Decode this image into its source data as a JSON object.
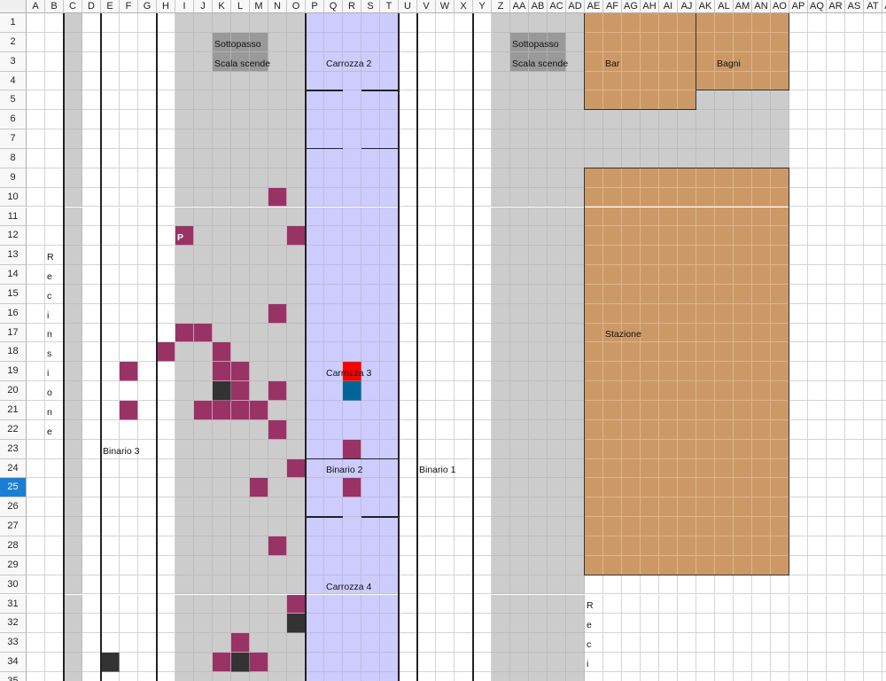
{
  "columns": [
    "A",
    "B",
    "C",
    "D",
    "E",
    "F",
    "G",
    "H",
    "I",
    "J",
    "K",
    "L",
    "M",
    "N",
    "O",
    "P",
    "Q",
    "R",
    "S",
    "T",
    "U",
    "V",
    "W",
    "X",
    "Y",
    "Z",
    "AA",
    "AB",
    "AC",
    "AD",
    "AE",
    "AF",
    "AG",
    "AH",
    "AI",
    "AJ",
    "AK",
    "AL",
    "AM",
    "AN",
    "AO",
    "AP",
    "AQ",
    "AR",
    "AS",
    "AT",
    "AU"
  ],
  "rows": [
    "1",
    "2",
    "3",
    "4",
    "5",
    "6",
    "7",
    "8",
    "9",
    "10",
    "11",
    "12",
    "13",
    "14",
    "15",
    "16",
    "17",
    "18",
    "19",
    "20",
    "21",
    "22",
    "23",
    "24",
    "25",
    "26",
    "27",
    "28",
    "29",
    "30",
    "31",
    "32",
    "33",
    "34",
    "35"
  ],
  "selected_row": "25",
  "colors": {
    "gray": "#cccccc",
    "dark_gray": "#999999",
    "lavender": "#ccccff",
    "orange": "#cc9966",
    "magenta": "#993366",
    "dark": "#333333",
    "red": "#ff0000",
    "blue": "#006699"
  },
  "fills": [
    {
      "range": "C1:C35",
      "color": "gray"
    },
    {
      "range": "I1:O35",
      "color": "gray"
    },
    {
      "range": "P1:T35",
      "color": "lavender"
    },
    {
      "range": "Z1:AD35",
      "color": "gray"
    },
    {
      "range": "AE1:AJ5",
      "color": "orange"
    },
    {
      "range": "AK1:AO4",
      "color": "orange"
    },
    {
      "range": "AK5:AO8",
      "color": "gray"
    },
    {
      "range": "AE6:AJ8",
      "color": "gray"
    },
    {
      "range": "AE9:AO29",
      "color": "orange"
    },
    {
      "range": "K2:M3",
      "color": "dark_gray"
    },
    {
      "range": "AA2:AC3",
      "color": "dark_gray"
    },
    {
      "range": "R19:R19",
      "color": "red"
    },
    {
      "range": "R20:R20",
      "color": "blue"
    }
  ],
  "magenta_cells": [
    "N10",
    "I12",
    "O12",
    "N16",
    "I17",
    "J17",
    "H18",
    "K18",
    "F19",
    "K19",
    "L19",
    "L20",
    "N20",
    "F21",
    "J21",
    "K21",
    "L21",
    "M21",
    "N22",
    "R23",
    "O24",
    "M25",
    "R25",
    "N28",
    "O31",
    "L33",
    "K34",
    "M34"
  ],
  "dark_cells": [
    "K20",
    "O32",
    "E34",
    "L34"
  ],
  "labels": [
    {
      "cell": "K2",
      "text": "Sottopasso"
    },
    {
      "cell": "K3",
      "text": "Scala scende"
    },
    {
      "cell": "AA2",
      "text": "Sottopasso"
    },
    {
      "cell": "AA3",
      "text": "Scala scende"
    },
    {
      "cell": "Q3",
      "text": "Carrozza 2"
    },
    {
      "cell": "AF3",
      "text": "Bar"
    },
    {
      "cell": "AL3",
      "text": "Bagni"
    },
    {
      "cell": "I12",
      "text": "P",
      "style": "white"
    },
    {
      "cell": "AF17",
      "text": "Stazione"
    },
    {
      "cell": "Q19",
      "text": "Carrozza 3"
    },
    {
      "cell": "E23",
      "text": "Binario 3"
    },
    {
      "cell": "Q24",
      "text": "Binario 2"
    },
    {
      "cell": "V24",
      "text": "Binario 1"
    },
    {
      "cell": "Q30",
      "text": "Carrozza 4"
    },
    {
      "cell": "B13",
      "text": "R"
    },
    {
      "cell": "B14",
      "text": "e"
    },
    {
      "cell": "B15",
      "text": "c"
    },
    {
      "cell": "B16",
      "text": "i"
    },
    {
      "cell": "B17",
      "text": "n"
    },
    {
      "cell": "B18",
      "text": "s"
    },
    {
      "cell": "B19",
      "text": "i"
    },
    {
      "cell": "B20",
      "text": "o"
    },
    {
      "cell": "B21",
      "text": "n"
    },
    {
      "cell": "B22",
      "text": "e"
    },
    {
      "cell": "AE31",
      "text": "R"
    },
    {
      "cell": "AE32",
      "text": "e"
    },
    {
      "cell": "AE33",
      "text": "c"
    },
    {
      "cell": "AE34",
      "text": "i"
    }
  ]
}
